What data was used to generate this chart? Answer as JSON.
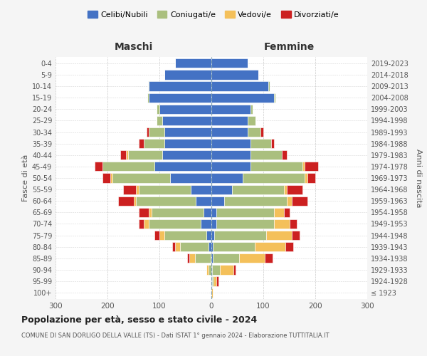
{
  "age_groups": [
    "100+",
    "95-99",
    "90-94",
    "85-89",
    "80-84",
    "75-79",
    "70-74",
    "65-69",
    "60-64",
    "55-59",
    "50-54",
    "45-49",
    "40-44",
    "35-39",
    "30-34",
    "25-29",
    "20-24",
    "15-19",
    "10-14",
    "5-9",
    "0-4"
  ],
  "birth_years": [
    "≤ 1923",
    "1924-1928",
    "1929-1933",
    "1934-1938",
    "1939-1943",
    "1944-1948",
    "1949-1953",
    "1954-1958",
    "1959-1963",
    "1964-1968",
    "1969-1973",
    "1974-1978",
    "1979-1983",
    "1984-1988",
    "1989-1993",
    "1994-1998",
    "1999-2003",
    "2004-2008",
    "2009-2013",
    "2014-2018",
    "2019-2023"
  ],
  "colors": {
    "celibe": "#4472C4",
    "coniugato": "#AABF7E",
    "vedovo": "#F4C05A",
    "divorziato": "#CC2020"
  },
  "maschi": {
    "celibe": [
      0,
      0,
      0,
      2,
      5,
      10,
      20,
      15,
      30,
      40,
      80,
      110,
      95,
      90,
      90,
      95,
      100,
      120,
      120,
      90,
      70
    ],
    "coniugato": [
      0,
      0,
      5,
      30,
      55,
      80,
      100,
      100,
      115,
      100,
      110,
      100,
      65,
      40,
      30,
      10,
      5,
      3,
      2,
      0,
      0
    ],
    "vedovo": [
      0,
      0,
      5,
      10,
      10,
      10,
      10,
      5,
      5,
      5,
      5,
      0,
      5,
      0,
      0,
      0,
      0,
      0,
      0,
      0,
      0
    ],
    "divorziato": [
      0,
      0,
      0,
      5,
      5,
      10,
      10,
      20,
      30,
      25,
      15,
      15,
      10,
      10,
      5,
      0,
      0,
      0,
      0,
      0,
      0
    ]
  },
  "femmine": {
    "celibe": [
      0,
      2,
      2,
      3,
      3,
      5,
      10,
      10,
      25,
      40,
      60,
      75,
      75,
      75,
      70,
      70,
      75,
      120,
      110,
      90,
      70
    ],
    "coniugato": [
      0,
      2,
      15,
      50,
      80,
      100,
      110,
      110,
      120,
      100,
      120,
      100,
      60,
      40,
      25,
      15,
      5,
      3,
      2,
      0,
      0
    ],
    "vedovo": [
      3,
      5,
      25,
      50,
      60,
      50,
      30,
      20,
      10,
      5,
      5,
      5,
      0,
      0,
      0,
      0,
      0,
      0,
      0,
      0,
      0
    ],
    "divorziato": [
      0,
      5,
      5,
      15,
      15,
      15,
      15,
      10,
      30,
      30,
      15,
      25,
      10,
      5,
      5,
      0,
      0,
      0,
      0,
      0,
      0
    ]
  },
  "xlim": 300,
  "title": "Popolazione per età, sesso e stato civile - 2024",
  "subtitle": "COMUNE DI SAN DORLIGO DELLA VALLE (TS) - Dati ISTAT 1° gennaio 2024 - Elaborazione TUTTITALIA.IT",
  "xlabel_left": "Maschi",
  "xlabel_right": "Femmine",
  "ylabel_left": "Fasce di età",
  "ylabel_right": "Anni di nascita",
  "legend_labels": [
    "Celibi/Nubili",
    "Coniugati/e",
    "Vedovi/e",
    "Divorziati/e"
  ],
  "background_color": "#f5f5f5",
  "plot_bg_color": "#ffffff"
}
